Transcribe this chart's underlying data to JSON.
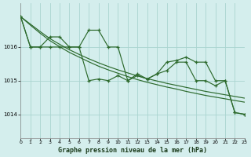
{
  "title": "Graphe pression niveau de la mer (hPa)",
  "bg_color": "#d4eeed",
  "grid_color": "#aad4d0",
  "line_color": "#2d6a2d",
  "xlim": [
    0,
    23
  ],
  "ylim": [
    1013.3,
    1017.3
  ],
  "yticks": [
    1014,
    1015,
    1016
  ],
  "xticks": [
    0,
    1,
    2,
    3,
    4,
    5,
    6,
    7,
    8,
    9,
    10,
    11,
    12,
    13,
    14,
    15,
    16,
    17,
    18,
    19,
    20,
    21,
    22,
    23
  ],
  "series1": [
    1016.9,
    1016.0,
    1016.0,
    1016.3,
    1016.3,
    1016.0,
    1016.0,
    1016.5,
    1016.5,
    1016.0,
    1016.0,
    1015.0,
    1015.2,
    1015.05,
    1015.2,
    1015.55,
    1015.6,
    1015.7,
    1015.55,
    1015.55,
    1015.0,
    1015.0,
    1014.05,
    1014.0
  ],
  "series2": [
    1016.9,
    1016.0,
    1016.0,
    1016.0,
    1016.0,
    1016.0,
    1016.0,
    1015.0,
    1015.05,
    1015.0,
    1015.15,
    1015.0,
    1015.15,
    1015.05,
    1015.2,
    1015.3,
    1015.55,
    1015.55,
    1015.0,
    1015.0,
    1014.85,
    1015.0,
    1014.05,
    1014.0
  ],
  "trend1": [
    1016.9,
    1016.68,
    1016.46,
    1016.25,
    1016.08,
    1015.92,
    1015.78,
    1015.65,
    1015.53,
    1015.42,
    1015.32,
    1015.23,
    1015.14,
    1015.06,
    1014.99,
    1014.92,
    1014.86,
    1014.8,
    1014.74,
    1014.68,
    1014.63,
    1014.58,
    1014.53,
    1014.48
  ],
  "trend2": [
    1016.9,
    1016.65,
    1016.41,
    1016.19,
    1016.01,
    1015.84,
    1015.7,
    1015.56,
    1015.43,
    1015.32,
    1015.22,
    1015.12,
    1015.03,
    1014.95,
    1014.88,
    1014.81,
    1014.75,
    1014.68,
    1014.62,
    1014.56,
    1014.51,
    1014.46,
    1014.41,
    1014.36
  ]
}
